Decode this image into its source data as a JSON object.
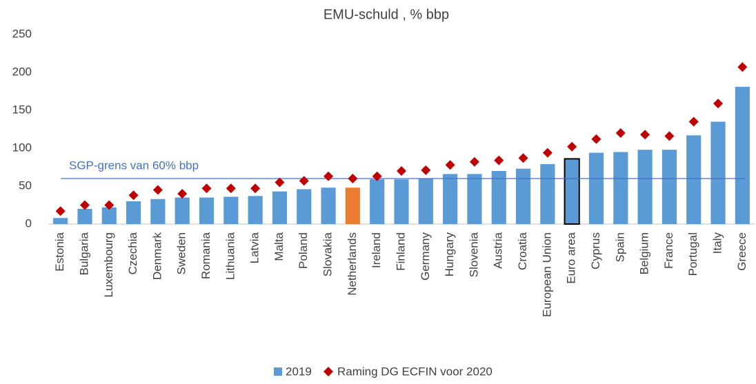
{
  "chart_data": {
    "type": "bar",
    "title": "EMU-schuld , % bbp",
    "categories": [
      "Estonia",
      "Bulgaria",
      "Luxembourg",
      "Czechia",
      "Denmark",
      "Sweden",
      "Romania",
      "Lithuania",
      "Latvia",
      "Malta",
      "Poland",
      "Slovakia",
      "Netherlands",
      "Ireland",
      "Finland",
      "Germany",
      "Hungary",
      "Slovenia",
      "Austria",
      "Croatia",
      "European Union",
      "Euro area",
      "Cyprus",
      "Spain",
      "Belgium",
      "France",
      "Portugal",
      "Italy",
      "Greece"
    ],
    "series": [
      {
        "name": "2019",
        "color": "#5b9bd5",
        "colors": [
          "#5b9bd5",
          "#5b9bd5",
          "#5b9bd5",
          "#5b9bd5",
          "#5b9bd5",
          "#5b9bd5",
          "#5b9bd5",
          "#5b9bd5",
          "#5b9bd5",
          "#5b9bd5",
          "#5b9bd5",
          "#5b9bd5",
          "#ed7d31",
          "#5b9bd5",
          "#5b9bd5",
          "#5b9bd5",
          "#5b9bd5",
          "#5b9bd5",
          "#5b9bd5",
          "#5b9bd5",
          "#5b9bd5",
          "#5b9bd5",
          "#5b9bd5",
          "#5b9bd5",
          "#5b9bd5",
          "#5b9bd5",
          "#5b9bd5",
          "#5b9bd5",
          "#5b9bd5"
        ],
        "edgecolors": [
          null,
          null,
          null,
          null,
          null,
          null,
          null,
          null,
          null,
          null,
          null,
          null,
          null,
          null,
          null,
          null,
          null,
          null,
          null,
          null,
          null,
          "#000000",
          null,
          null,
          null,
          null,
          null,
          null,
          null
        ],
        "values": [
          8,
          20,
          22,
          30,
          33,
          35,
          35,
          36,
          37,
          43,
          46,
          48,
          48,
          59,
          59,
          60,
          66,
          66,
          70,
          73,
          79,
          86,
          94,
          95,
          98,
          98,
          117,
          135,
          181
        ]
      },
      {
        "name": "Raming DG ECFIN voor 2020",
        "color": "#c00000",
        "marker": "diamond",
        "values": [
          17,
          25,
          25,
          38,
          45,
          40,
          47,
          47,
          47,
          55,
          57,
          63,
          60,
          63,
          70,
          71,
          78,
          82,
          84,
          87,
          94,
          102,
          112,
          120,
          118,
          116,
          135,
          159,
          207
        ]
      }
    ],
    "ylim": [
      0,
      250
    ],
    "yticks": [
      0,
      50,
      100,
      150,
      200,
      250
    ],
    "grid": false,
    "reference_line": {
      "value": 60,
      "text": "SGP-grens van 60% bbp",
      "color": "#4472c4"
    },
    "legend": "bottom"
  }
}
